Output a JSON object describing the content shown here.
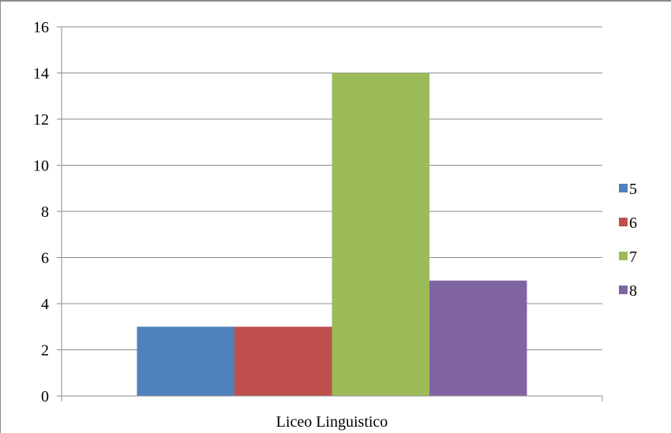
{
  "chart_data": {
    "type": "bar",
    "title": "",
    "xlabel": "",
    "ylabel": "",
    "categories": [
      "Liceo Linguistico"
    ],
    "series": [
      {
        "name": "5",
        "values": [
          3
        ],
        "color": "#4f81bd"
      },
      {
        "name": "6",
        "values": [
          3
        ],
        "color": "#c0504d"
      },
      {
        "name": "7",
        "values": [
          14
        ],
        "color": "#9bbb59"
      },
      {
        "name": "8",
        "values": [
          5
        ],
        "color": "#8064a2"
      }
    ],
    "ylim": [
      0,
      16
    ],
    "yticks": [
      "0",
      "2",
      "4",
      "6",
      "8",
      "10",
      "12",
      "14",
      "16"
    ],
    "grid": true,
    "legend_position": "right"
  }
}
